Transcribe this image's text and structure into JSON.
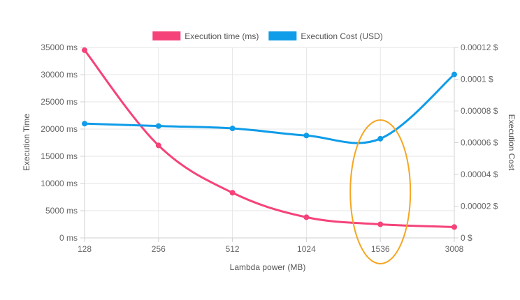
{
  "chart_data": {
    "type": "line",
    "categories": [
      "128",
      "256",
      "512",
      "1024",
      "1536",
      "3008"
    ],
    "series": [
      {
        "name": "Execution time (ms)",
        "axis": "left",
        "color": "#f5437a",
        "values": [
          34500,
          17000,
          8300,
          3800,
          2500,
          2000
        ]
      },
      {
        "name": "Execution Cost (USD)",
        "axis": "right",
        "color": "#0f9ce8",
        "values": [
          7.2e-05,
          7.05e-05,
          6.9e-05,
          6.45e-05,
          6.25e-05,
          0.000103
        ]
      }
    ],
    "xlabel": "Lambda power (MB)",
    "ylabel_left": "Execution Time",
    "ylabel_right": "Execution Cost",
    "ylim_left": [
      0,
      35000
    ],
    "ylim_right": [
      0,
      0.00012
    ],
    "yticks_left": [
      "0 ms",
      "5000 ms",
      "10000 ms",
      "15000 ms",
      "20000 ms",
      "25000 ms",
      "30000 ms",
      "35000 ms"
    ],
    "yticks_right": [
      "0 $",
      "0.00002 $",
      "0.00004 $",
      "0.00006 $",
      "0.00008 $",
      "0.0001 $",
      "0.00012 $"
    ],
    "grid": true,
    "legend": "top-center",
    "annotation": {
      "type": "ellipse",
      "around_category": "1536",
      "color": "#f5a623"
    }
  }
}
